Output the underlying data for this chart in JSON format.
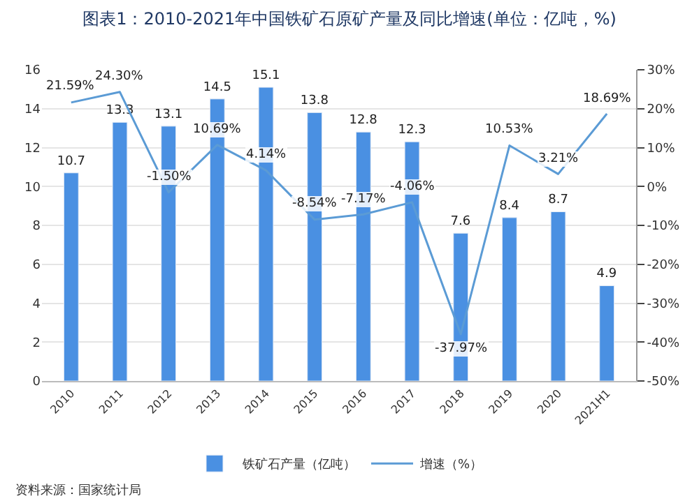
{
  "chart_data": {
    "type": "bar",
    "title": "图表1：2010-2021年中国铁矿石原矿产量及同比增速(单位：亿吨，%)",
    "categories": [
      "2010",
      "2011",
      "2012",
      "2013",
      "2014",
      "2015",
      "2016",
      "2017",
      "2018",
      "2019",
      "2020",
      "2021H1"
    ],
    "series": [
      {
        "name": "铁矿石产量（亿吨）",
        "color": "#4a90e2",
        "values": [
          10.7,
          13.3,
          13.1,
          14.5,
          15.1,
          13.8,
          12.8,
          12.3,
          7.6,
          8.4,
          8.7,
          4.9
        ],
        "value_labels": [
          "10.7",
          "13.3",
          "13.1",
          "14.5",
          "15.1",
          "13.8",
          "12.8",
          "12.3",
          "7.6",
          "8.4",
          "8.7",
          "4.9"
        ]
      },
      {
        "name": "增速（%）",
        "type": "line",
        "axis": "y2",
        "color": "#5b9bd5",
        "values": [
          21.59,
          24.3,
          -1.5,
          10.69,
          4.14,
          -8.54,
          -7.17,
          -4.06,
          -37.97,
          10.53,
          3.21,
          18.69
        ],
        "value_labels": [
          "21.59%",
          "24.30%",
          "-1.50%",
          "10.69%",
          "4.14%",
          "-8.54%",
          "-7.17%",
          "-4.06%",
          "-37.97%",
          "10.53%",
          "3.21%",
          "18.69%"
        ]
      }
    ],
    "ylim": [
      0,
      16
    ],
    "yticks": [
      0,
      2,
      4,
      6,
      8,
      10,
      12,
      14,
      16
    ],
    "y2lim": [
      -50,
      30
    ],
    "y2ticks": [
      {
        "value": -50,
        "label": "-50%"
      },
      {
        "value": -40,
        "label": "-40%"
      },
      {
        "value": -30,
        "label": "-30%"
      },
      {
        "value": -20,
        "label": "-20%"
      },
      {
        "value": -10,
        "label": "-10%"
      },
      {
        "value": 0,
        "label": "0%"
      },
      {
        "value": 10,
        "label": "10%"
      },
      {
        "value": 20,
        "label": "20%"
      },
      {
        "value": 30,
        "label": "30%"
      }
    ],
    "grid": "y",
    "legend": "bottom",
    "marker": "none",
    "line_style": "solid",
    "annotations": [
      "资料来源：国家统计局"
    ]
  }
}
